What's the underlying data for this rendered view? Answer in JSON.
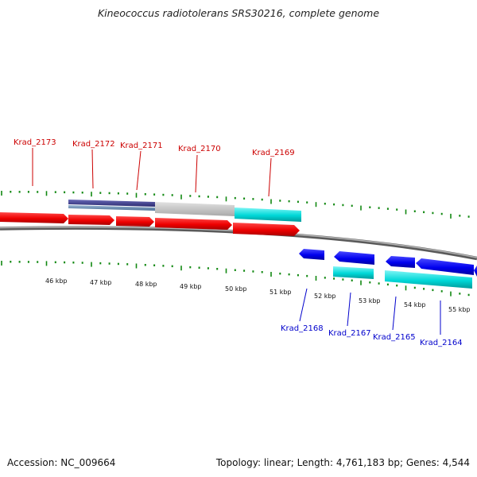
{
  "title": "Kineococcus radiotolerans SRS30216, complete genome",
  "footer": {
    "accession": "Accession: NC_009664",
    "stats": "Topology: linear; Length: 4,761,183 bp; Genes: 4,544"
  },
  "scale": {
    "unit_labels": [
      "46 kbp",
      "47 kbp",
      "48 kbp",
      "49 kbp",
      "50 kbp",
      "51 kbp",
      "52 kbp",
      "53 kbp",
      "54 kbp",
      "55 kbp"
    ]
  },
  "genes_forward": [
    {
      "name": "Krad_2173"
    },
    {
      "name": "Krad_2172"
    },
    {
      "name": "Krad_2171"
    },
    {
      "name": "Krad_2170"
    },
    {
      "name": "Krad_2169"
    }
  ],
  "genes_reverse": [
    {
      "name": "Krad_2168"
    },
    {
      "name": "Krad_2167"
    },
    {
      "name": "Krad_2165"
    },
    {
      "name": "Krad_2164"
    }
  ],
  "colors": {
    "forward_gene": "#ee0000",
    "reverse_gene": "#0000ee",
    "cds_cyan": "#00d8d8",
    "cds_grey": "#c0c0c0",
    "cds_purple": "#3a3a8a",
    "backbone": "#888888",
    "tick_green": "#118811",
    "label_red": "#cc0000",
    "label_blue": "#0000cc"
  }
}
